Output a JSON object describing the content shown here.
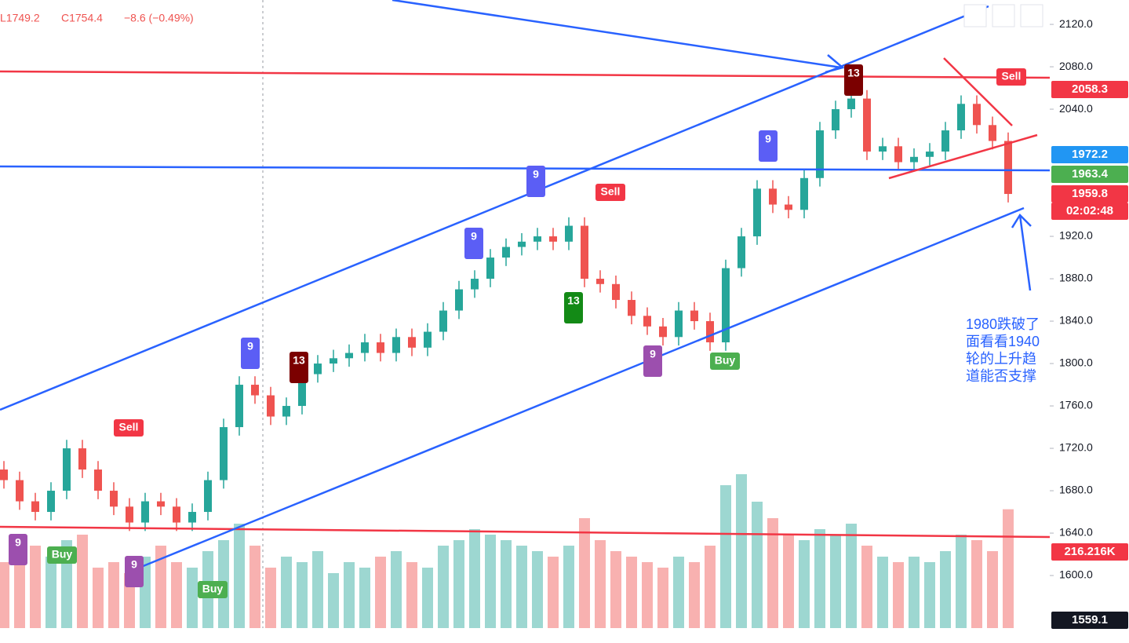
{
  "chart_data": {
    "type": "candlestick",
    "header": {
      "low": "L1749.2",
      "close": "C1754.4",
      "change": "−8.6 (−0.49%)"
    },
    "open": [
      1700,
      1690,
      1670,
      1660,
      1680,
      1720,
      1700,
      1680,
      1665,
      1650,
      1670,
      1665,
      1650,
      1660,
      1690,
      1740,
      1780,
      1770,
      1750,
      1760,
      1790,
      1800,
      1805,
      1810,
      1820,
      1810,
      1825,
      1815,
      1830,
      1850,
      1870,
      1880,
      1900,
      1910,
      1915,
      1920,
      1915,
      1930,
      1880,
      1875,
      1860,
      1845,
      1835,
      1825,
      1850,
      1840,
      1820,
      1890,
      1920,
      1965,
      1950,
      1945,
      1975,
      2020,
      2040,
      2050,
      2000,
      2005,
      1990,
      1995,
      2000,
      2020,
      2045,
      2025,
      2010
    ],
    "high": [
      1708,
      1698,
      1678,
      1688,
      1728,
      1728,
      1708,
      1688,
      1673,
      1678,
      1678,
      1673,
      1668,
      1698,
      1748,
      1788,
      1788,
      1778,
      1768,
      1798,
      1808,
      1813,
      1818,
      1828,
      1828,
      1833,
      1833,
      1838,
      1858,
      1878,
      1888,
      1908,
      1918,
      1923,
      1928,
      1928,
      1938,
      1938,
      1888,
      1883,
      1868,
      1853,
      1843,
      1858,
      1858,
      1848,
      1898,
      1928,
      1973,
      1973,
      1958,
      1983,
      2028,
      2048,
      2058,
      2058,
      2013,
      2013,
      2003,
      2008,
      2028,
      2053,
      2053,
      2033,
      2018
    ],
    "low": [
      1682,
      1662,
      1652,
      1652,
      1672,
      1692,
      1672,
      1657,
      1642,
      1642,
      1657,
      1642,
      1642,
      1652,
      1682,
      1732,
      1762,
      1742,
      1742,
      1752,
      1782,
      1792,
      1797,
      1802,
      1802,
      1802,
      1807,
      1807,
      1822,
      1842,
      1862,
      1872,
      1892,
      1902,
      1907,
      1907,
      1907,
      1872,
      1867,
      1852,
      1837,
      1827,
      1817,
      1817,
      1832,
      1812,
      1812,
      1882,
      1912,
      1942,
      1937,
      1937,
      1967,
      2012,
      2032,
      1992,
      1992,
      1982,
      1982,
      1987,
      1992,
      2012,
      2017,
      2002,
      1952
    ],
    "close": [
      1690,
      1670,
      1660,
      1680,
      1720,
      1700,
      1680,
      1665,
      1650,
      1670,
      1665,
      1650,
      1660,
      1690,
      1740,
      1780,
      1770,
      1750,
      1760,
      1790,
      1800,
      1805,
      1810,
      1820,
      1810,
      1825,
      1815,
      1830,
      1850,
      1870,
      1880,
      1900,
      1910,
      1915,
      1920,
      1915,
      1930,
      1880,
      1875,
      1860,
      1845,
      1835,
      1825,
      1850,
      1840,
      1820,
      1890,
      1920,
      1965,
      1950,
      1945,
      1975,
      2020,
      2040,
      2050,
      2000,
      2005,
      1990,
      1995,
      2000,
      2020,
      2045,
      2025,
      2010,
      1960
    ],
    "volume": [
      120,
      140,
      150,
      130,
      160,
      170,
      110,
      120,
      100,
      130,
      150,
      120,
      110,
      140,
      160,
      190,
      150,
      110,
      130,
      120,
      140,
      100,
      120,
      110,
      130,
      140,
      120,
      110,
      150,
      160,
      180,
      170,
      160,
      150,
      140,
      130,
      150,
      200,
      160,
      140,
      130,
      120,
      110,
      130,
      120,
      150,
      260,
      280,
      230,
      200,
      170,
      160,
      180,
      170,
      190,
      150,
      130,
      120,
      130,
      120,
      140,
      170,
      160,
      140,
      216.216
    ],
    "up_color": "#26a69a",
    "down_color": "#ef5350",
    "ylim": [
      1550.4,
      2143
    ],
    "yticks": [
      {
        "value": 2120,
        "label": "2120.0"
      },
      {
        "value": 2080,
        "label": "2080.0"
      },
      {
        "value": 2040,
        "label": "2040.0"
      },
      {
        "value": 1920,
        "label": "1920.0"
      },
      {
        "value": 1880,
        "label": "1880.0"
      },
      {
        "value": 1840,
        "label": "1840.0"
      },
      {
        "value": 1800,
        "label": "1800.0"
      },
      {
        "value": 1760,
        "label": "1760.0"
      },
      {
        "value": 1720,
        "label": "1720.0"
      },
      {
        "value": 1680,
        "label": "1680.0"
      },
      {
        "value": 1640,
        "label": "1640.0"
      },
      {
        "value": 1600,
        "label": "1600.0"
      }
    ],
    "price_labels": [
      {
        "label": "2058.3",
        "color": "#f23645"
      },
      {
        "label": "1972.2",
        "color": "#2196f3"
      },
      {
        "label": "1963.4",
        "color": "#4caf50"
      },
      {
        "label": "1959.8",
        "color": "#f23645"
      },
      {
        "label": "02:02:48",
        "color": "#f23645"
      },
      {
        "label": "216.216K",
        "color": "#f23645"
      },
      {
        "label": "1559.1",
        "color": "#131722"
      }
    ],
    "signals": [
      "Sell",
      "Sell",
      "Sell",
      "Buy",
      "Buy",
      "Buy",
      "9",
      "9",
      "9",
      "9",
      "9",
      "9",
      "9",
      "13",
      "13",
      "13"
    ],
    "annotation": [
      "1980跌破了",
      "面看看1940",
      "轮的上升趋",
      "道能否支撑"
    ]
  }
}
